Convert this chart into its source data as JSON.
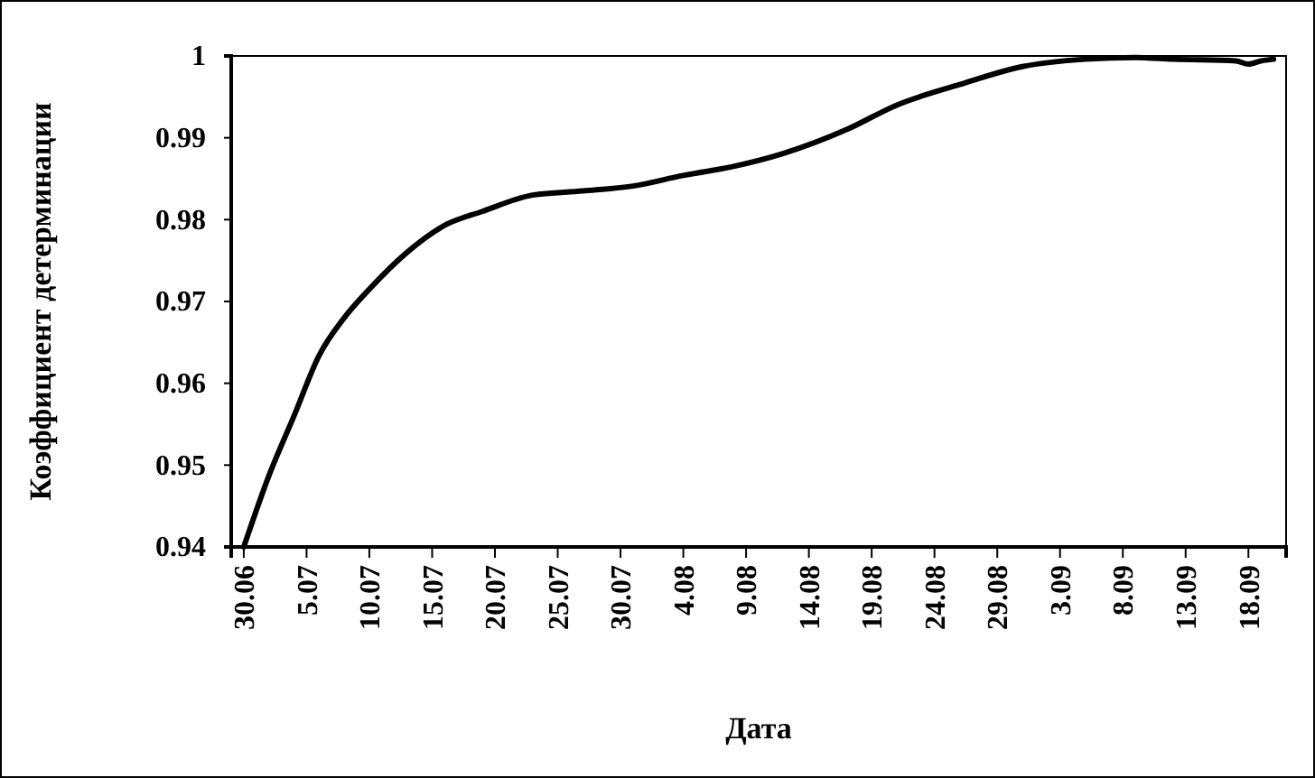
{
  "chart_data": {
    "type": "line",
    "xlabel": "Дата",
    "ylabel": "Коэффициент детерминации",
    "x": [
      "--06-30",
      "--07-02",
      "--07-04",
      "--07-06",
      "--07-08",
      "--07-10",
      "--07-13",
      "--07-16",
      "--07-19",
      "--07-23",
      "--07-27",
      "--07-31",
      "--08-04",
      "--08-08",
      "--08-12",
      "--08-17",
      "--08-21",
      "--08-26",
      "--08-31",
      "--09-05",
      "--09-09",
      "--09-12",
      "--09-17",
      "--09-18",
      "--09-19",
      "--09-20"
    ],
    "series": [
      {
        "color": "#000000",
        "values": [
          0.94,
          0.9487,
          0.956,
          0.9634,
          0.968,
          0.9715,
          0.976,
          0.9793,
          0.981,
          0.983,
          0.9835,
          0.9841,
          0.9854,
          0.9865,
          0.9881,
          0.991,
          0.994,
          0.9965,
          0.9987,
          0.9996,
          0.9998,
          0.9996,
          0.9994,
          0.999,
          0.9994,
          0.9996
        ]
      }
    ],
    "xlim": [
      "--06-29",
      "--09-21"
    ],
    "xticks": [
      {
        "value": "--06-30",
        "label": "30.06"
      },
      {
        "value": "--07-05",
        "label": "5.07"
      },
      {
        "value": "--07-10",
        "label": "10.07"
      },
      {
        "value": "--07-15",
        "label": "15.07"
      },
      {
        "value": "--07-20",
        "label": "20.07"
      },
      {
        "value": "--07-25",
        "label": "25.07"
      },
      {
        "value": "--07-30",
        "label": "30.07"
      },
      {
        "value": "--08-04",
        "label": "4.08"
      },
      {
        "value": "--08-09",
        "label": "9.08"
      },
      {
        "value": "--08-14",
        "label": "14.08"
      },
      {
        "value": "--08-19",
        "label": "19.08"
      },
      {
        "value": "--08-24",
        "label": "24.08"
      },
      {
        "value": "--08-29",
        "label": "29.08"
      },
      {
        "value": "--09-03",
        "label": "3.09"
      },
      {
        "value": "--09-08",
        "label": "8.09"
      },
      {
        "value": "--09-13",
        "label": "13.09"
      },
      {
        "value": "--09-18",
        "label": "18.09"
      }
    ],
    "ylim": [
      0.94,
      1
    ],
    "yticks": [
      0.94,
      0.95,
      0.96,
      0.97,
      0.98,
      0.99,
      {
        "value": 1,
        "label": "1"
      }
    ],
    "marker": "none",
    "line_style": "solid"
  }
}
